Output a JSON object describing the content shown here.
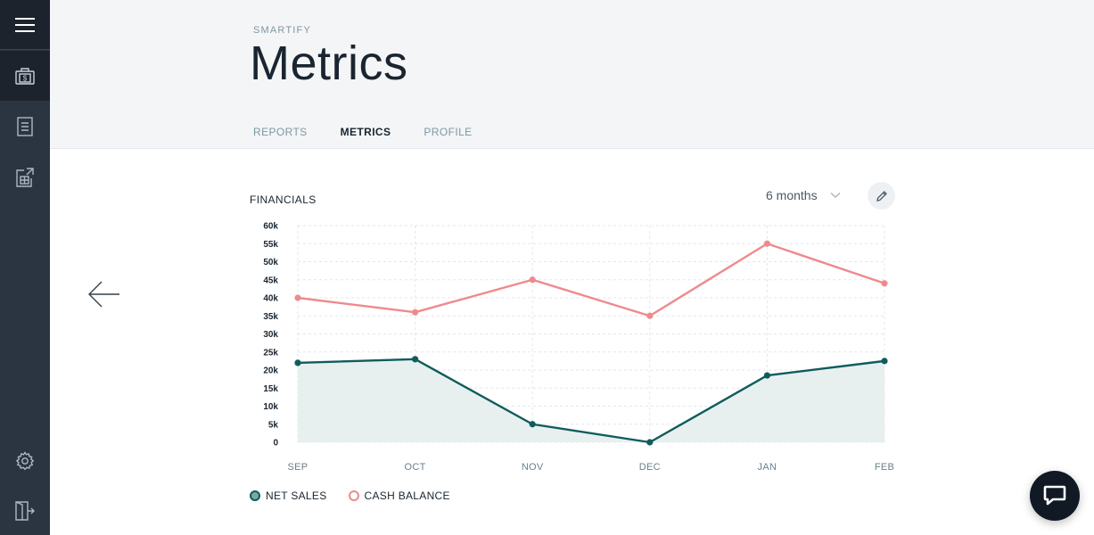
{
  "sidebar": {
    "items": [
      {
        "name": "menu-icon"
      },
      {
        "name": "cash-register-icon",
        "active": true
      },
      {
        "name": "document-icon"
      },
      {
        "name": "export-table-icon"
      },
      {
        "name": "gear-icon"
      },
      {
        "name": "logout-icon"
      }
    ]
  },
  "header": {
    "brand": "SMARTIFY",
    "title": "Metrics",
    "tabs": [
      {
        "label": "REPORTS",
        "active": false
      },
      {
        "label": "METRICS",
        "active": true
      },
      {
        "label": "PROFILE",
        "active": false
      }
    ]
  },
  "financials": {
    "title": "FINANCIALS",
    "range": "6 months"
  },
  "colors": {
    "net_sales": "#0f5c5c",
    "cash_balance": "#ef8a8c",
    "area_fill": "#e8f0ef"
  },
  "chart_data": {
    "type": "line",
    "categories": [
      "SEP",
      "OCT",
      "NOV",
      "DEC",
      "JAN",
      "FEB"
    ],
    "yticks": [
      "0",
      "5k",
      "10k",
      "15k",
      "20k",
      "25k",
      "30k",
      "35k",
      "40k",
      "45k",
      "50k",
      "55k",
      "60k"
    ],
    "ylim": [
      0,
      60000
    ],
    "grid": true,
    "legend": "bottom-left",
    "series": [
      {
        "name": "NET SALES",
        "values": [
          22000,
          23000,
          5000,
          0,
          18500,
          22500
        ],
        "area": true
      },
      {
        "name": "CASH BALANCE",
        "values": [
          40000,
          36000,
          45000,
          35000,
          55000,
          44000
        ],
        "area": false
      }
    ]
  }
}
